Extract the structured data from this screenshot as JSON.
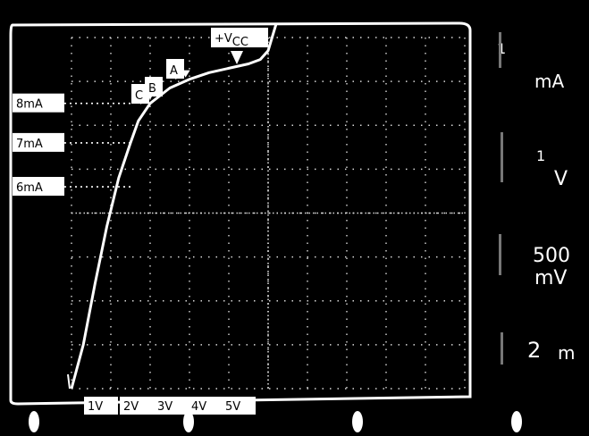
{
  "chart_data": {
    "type": "line",
    "title": "",
    "xlabel": "",
    "ylabel": "",
    "x_tick_labels": [
      "1V",
      "2V",
      "3V",
      "4V",
      "5V"
    ],
    "y_tick_labels": [
      "8mA",
      "7mA",
      "6mA"
    ],
    "vcc_label": "+VCC",
    "vcc_main": "+V",
    "vcc_sub": "CC",
    "point_labels": [
      "A",
      "B",
      "C"
    ],
    "xlim": [
      0,
      10
    ],
    "ylim": [
      0,
      8
    ],
    "grid": true,
    "series": [
      {
        "x": [
          0,
          0.3,
          0.6,
          0.9,
          1.2,
          1.5,
          1.7,
          2.0,
          2.5,
          3.0,
          3.5,
          4.0,
          4.5,
          4.8,
          5.0,
          5.2
        ],
        "y": [
          0,
          1.0,
          2.4,
          3.7,
          4.8,
          5.6,
          6.1,
          6.5,
          6.85,
          7.05,
          7.2,
          7.3,
          7.4,
          7.5,
          7.7,
          8.3
        ]
      }
    ],
    "points": [
      {
        "label": "A",
        "x": 2.9,
        "y": 7.05
      },
      {
        "label": "B",
        "x": 2.2,
        "y": 6.7
      },
      {
        "label": "C",
        "x": 2.0,
        "y": 6.55
      },
      {
        "label": "+VCC",
        "x": 4.8,
        "y": 7.5
      }
    ]
  },
  "scope_settings": {
    "ch1_value": "1",
    "ch1_unit": "mA",
    "ch2_value": "1",
    "ch2_unit": "V",
    "ch3_value": "500",
    "ch3_unit": "mV",
    "ch4_value": "2",
    "ch4_unit": "m"
  },
  "colors": {
    "background": "#000000",
    "trace": "#ffffff",
    "grid": "#d9d9d9"
  }
}
